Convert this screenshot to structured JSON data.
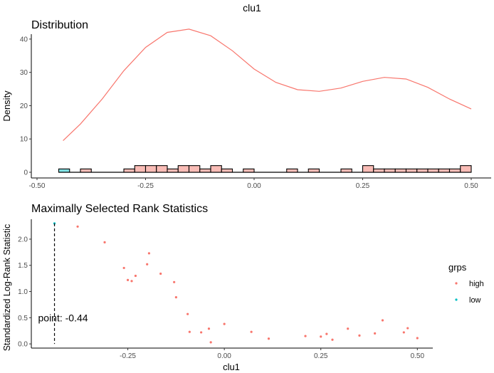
{
  "figure_title": "clu1",
  "legend": {
    "title": "grps",
    "items": [
      {
        "label": "high",
        "color": "#F8766D"
      },
      {
        "label": "low",
        "color": "#00BFC4"
      }
    ]
  },
  "chart_data": [
    {
      "type": "histogram+density",
      "title": "Distribution",
      "xlabel": "",
      "ylabel": "Density",
      "xlim": [
        -0.5,
        0.5
      ],
      "ylim": [
        0,
        45
      ],
      "xticks": [
        -0.5,
        -0.25,
        0.0,
        0.25,
        0.5
      ],
      "xtick_labels": [
        "-0.50",
        "-0.25",
        "0.00",
        "0.25",
        "0.50"
      ],
      "yticks": [
        0,
        10,
        20,
        30,
        40
      ],
      "ytick_labels": [
        "0",
        "10",
        "20",
        "30",
        "40"
      ],
      "grid": false,
      "density_color": "#F8766D",
      "bin_width": 0.025,
      "bars": [
        {
          "x": -0.45,
          "y": 1,
          "group": "low"
        },
        {
          "x": -0.4,
          "y": 1,
          "group": "high"
        },
        {
          "x": -0.3,
          "y": 1,
          "group": "high"
        },
        {
          "x": -0.275,
          "y": 2,
          "group": "high"
        },
        {
          "x": -0.25,
          "y": 2,
          "group": "high"
        },
        {
          "x": -0.225,
          "y": 2,
          "group": "high"
        },
        {
          "x": -0.2,
          "y": 1,
          "group": "high"
        },
        {
          "x": -0.175,
          "y": 2,
          "group": "high"
        },
        {
          "x": -0.15,
          "y": 2,
          "group": "high"
        },
        {
          "x": -0.125,
          "y": 1,
          "group": "high"
        },
        {
          "x": -0.1,
          "y": 2,
          "group": "high"
        },
        {
          "x": -0.075,
          "y": 1,
          "group": "high"
        },
        {
          "x": -0.025,
          "y": 1,
          "group": "high"
        },
        {
          "x": 0.075,
          "y": 1,
          "group": "high"
        },
        {
          "x": 0.125,
          "y": 1,
          "group": "high"
        },
        {
          "x": 0.2,
          "y": 1,
          "group": "high"
        },
        {
          "x": 0.25,
          "y": 2,
          "group": "high"
        },
        {
          "x": 0.275,
          "y": 1,
          "group": "high"
        },
        {
          "x": 0.3,
          "y": 1,
          "group": "high"
        },
        {
          "x": 0.325,
          "y": 1,
          "group": "high"
        },
        {
          "x": 0.35,
          "y": 1,
          "group": "high"
        },
        {
          "x": 0.375,
          "y": 1,
          "group": "high"
        },
        {
          "x": 0.4,
          "y": 1,
          "group": "high"
        },
        {
          "x": 0.425,
          "y": 1,
          "group": "high"
        },
        {
          "x": 0.45,
          "y": 1,
          "group": "high"
        },
        {
          "x": 0.475,
          "y": 2,
          "group": "high"
        }
      ],
      "density_curve": {
        "x": [
          -0.44,
          -0.4,
          -0.35,
          -0.3,
          -0.25,
          -0.2,
          -0.15,
          -0.1,
          -0.05,
          0.0,
          0.05,
          0.1,
          0.15,
          0.2,
          0.25,
          0.3,
          0.35,
          0.4,
          0.45,
          0.5
        ],
        "y": [
          9.5,
          14.5,
          22.0,
          30.5,
          37.5,
          42.0,
          43.0,
          41.0,
          36.5,
          31.0,
          27.0,
          24.8,
          24.3,
          25.3,
          27.3,
          28.5,
          28.0,
          25.5,
          22.0,
          19.0
        ]
      }
    },
    {
      "type": "scatter",
      "title": "Maximally Selected Rank Statistics",
      "xlabel": "clu1",
      "ylabel": "Standardized Log-Rank Statistic",
      "xlim": [
        -0.5,
        0.54
      ],
      "ylim": [
        -0.08,
        2.38
      ],
      "xticks": [
        -0.25,
        0.0,
        0.25,
        0.5
      ],
      "xtick_labels": [
        "-0.25",
        "0.00",
        "0.25",
        "0.50"
      ],
      "yticks": [
        0.0,
        0.5,
        1.0,
        1.5,
        2.0
      ],
      "ytick_labels": [
        "0.0",
        "0.5",
        "1.0",
        "1.5",
        "2.0"
      ],
      "grid": false,
      "legend_placement": "right",
      "cutpoint": -0.44,
      "cutpoint_label": "point: -0.44",
      "points": [
        {
          "x": -0.44,
          "y": 2.3,
          "group": "low"
        },
        {
          "x": -0.38,
          "y": 2.24,
          "group": "high"
        },
        {
          "x": -0.31,
          "y": 1.94,
          "group": "high"
        },
        {
          "x": -0.26,
          "y": 1.45,
          "group": "high"
        },
        {
          "x": -0.25,
          "y": 1.22,
          "group": "high"
        },
        {
          "x": -0.24,
          "y": 1.2,
          "group": "high"
        },
        {
          "x": -0.23,
          "y": 1.3,
          "group": "high"
        },
        {
          "x": -0.2,
          "y": 1.52,
          "group": "high"
        },
        {
          "x": -0.195,
          "y": 1.73,
          "group": "high"
        },
        {
          "x": -0.165,
          "y": 1.34,
          "group": "high"
        },
        {
          "x": -0.13,
          "y": 1.18,
          "group": "high"
        },
        {
          "x": -0.125,
          "y": 0.89,
          "group": "high"
        },
        {
          "x": -0.095,
          "y": 0.57,
          "group": "high"
        },
        {
          "x": -0.09,
          "y": 0.23,
          "group": "high"
        },
        {
          "x": -0.06,
          "y": 0.22,
          "group": "high"
        },
        {
          "x": -0.04,
          "y": 0.29,
          "group": "high"
        },
        {
          "x": -0.035,
          "y": 0.03,
          "group": "high"
        },
        {
          "x": 0.0,
          "y": 0.38,
          "group": "high"
        },
        {
          "x": 0.07,
          "y": 0.23,
          "group": "high"
        },
        {
          "x": 0.115,
          "y": 0.1,
          "group": "high"
        },
        {
          "x": 0.21,
          "y": 0.15,
          "group": "high"
        },
        {
          "x": 0.25,
          "y": 0.14,
          "group": "high"
        },
        {
          "x": 0.265,
          "y": 0.19,
          "group": "high"
        },
        {
          "x": 0.28,
          "y": 0.08,
          "group": "high"
        },
        {
          "x": 0.32,
          "y": 0.29,
          "group": "high"
        },
        {
          "x": 0.35,
          "y": 0.16,
          "group": "high"
        },
        {
          "x": 0.39,
          "y": 0.2,
          "group": "high"
        },
        {
          "x": 0.41,
          "y": 0.45,
          "group": "high"
        },
        {
          "x": 0.465,
          "y": 0.22,
          "group": "high"
        },
        {
          "x": 0.475,
          "y": 0.3,
          "group": "high"
        },
        {
          "x": 0.5,
          "y": 0.11,
          "group": "high"
        }
      ]
    }
  ]
}
